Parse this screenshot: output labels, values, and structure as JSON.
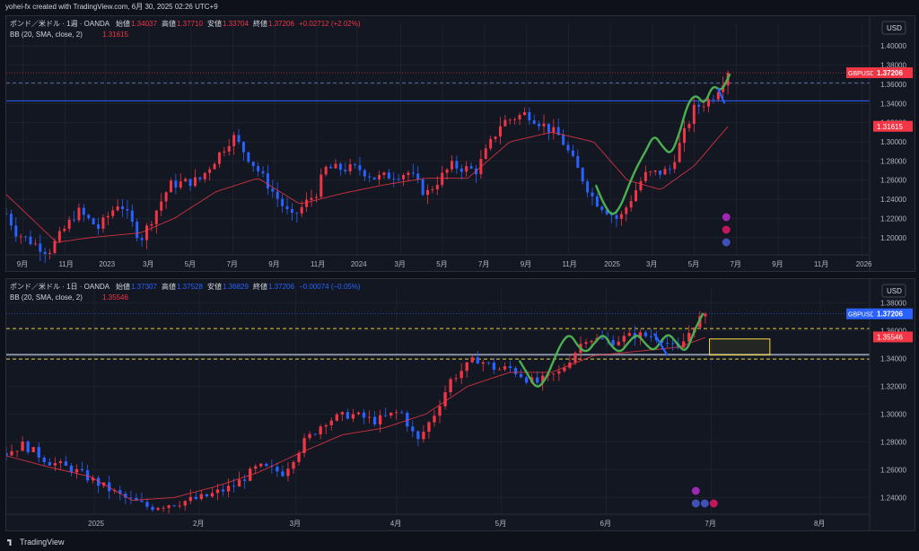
{
  "header": {
    "text": "yohei-fx created with TradingView.com, 6月 30, 2025 02:26 UTC+9"
  },
  "footer": {
    "brand": "TradingView"
  },
  "colors": {
    "up": "#f23645",
    "down": "#2962ff",
    "bb": "#f23645",
    "wave": "#4caf50",
    "hline": "#2962ff",
    "dash": "#e8cf3b",
    "box": "#f5d742"
  },
  "chart_data": [
    {
      "type": "candlestick",
      "title": "ポンド／米ドル · 1週 · OANDA",
      "ohlc_labels": [
        "始値",
        "高値",
        "安値",
        "終値"
      ],
      "ohlc_values": [
        "1.34037",
        "1.37710",
        "1.33704",
        "1.37206"
      ],
      "change": "+0.02712 (+2.02%)",
      "indicator_label": "BB (20, SMA, close, 2)",
      "indicator_value": "1.31615",
      "currency": "USD",
      "symbol": "GBPUSD",
      "last_price": "1.37206",
      "bb_price": "1.31615",
      "ylim": [
        1.182,
        1.418
      ],
      "y_ticks": [
        "1.40000",
        "1.38000",
        "1.36000",
        "1.34000",
        "1.32000",
        "1.30000",
        "1.28000",
        "1.26000",
        "1.24000",
        "1.22000",
        "1.20000"
      ],
      "x_ticks": [
        {
          "label": "9月",
          "t": 0.02
        },
        {
          "label": "11月",
          "t": 0.07
        },
        {
          "label": "2023",
          "t": 0.118
        },
        {
          "label": "3月",
          "t": 0.17
        },
        {
          "label": "5月",
          "t": 0.22
        },
        {
          "label": "7月",
          "t": 0.27
        },
        {
          "label": "9月",
          "t": 0.32
        },
        {
          "label": "11月",
          "t": 0.37
        },
        {
          "label": "2024",
          "t": 0.418
        },
        {
          "label": "3月",
          "t": 0.47
        },
        {
          "label": "5月",
          "t": 0.52
        },
        {
          "label": "7月",
          "t": 0.57
        },
        {
          "label": "9月",
          "t": 0.62
        },
        {
          "label": "11月",
          "t": 0.67
        },
        {
          "label": "2025",
          "t": 0.72
        },
        {
          "label": "3月",
          "t": 0.77
        },
        {
          "label": "5月",
          "t": 0.82
        },
        {
          "label": "7月",
          "t": 0.87
        },
        {
          "label": "9月",
          "t": 0.92
        },
        {
          "label": "11月",
          "t": 0.97
        },
        {
          "label": "2026",
          "t": 1.02
        }
      ],
      "h_lines": [
        1.3427
      ],
      "dashed_lines": [
        1.3615
      ],
      "anchors": [
        [
          0,
          1.225
        ],
        [
          0.012,
          1.205
        ],
        [
          0.05,
          1.185
        ],
        [
          0.085,
          1.228
        ],
        [
          0.11,
          1.21
        ],
        [
          0.135,
          1.238
        ],
        [
          0.16,
          1.198
        ],
        [
          0.195,
          1.255
        ],
        [
          0.23,
          1.26
        ],
        [
          0.27,
          1.306
        ],
        [
          0.3,
          1.27
        ],
        [
          0.34,
          1.22
        ],
        [
          0.37,
          1.248
        ],
        [
          0.38,
          1.272
        ],
        [
          0.42,
          1.272
        ],
        [
          0.44,
          1.262
        ],
        [
          0.48,
          1.268
        ],
        [
          0.5,
          1.245
        ],
        [
          0.53,
          1.275
        ],
        [
          0.56,
          1.27
        ],
        [
          0.59,
          1.32
        ],
        [
          0.62,
          1.33
        ],
        [
          0.66,
          1.305
        ],
        [
          0.7,
          1.24
        ],
        [
          0.73,
          1.218
        ],
        [
          0.76,
          1.265
        ],
        [
          0.79,
          1.27
        ],
        [
          0.82,
          1.335
        ],
        [
          0.84,
          1.345
        ],
        [
          0.86,
          1.372
        ]
      ],
      "bb_anchors": [
        [
          0,
          1.245
        ],
        [
          0.06,
          1.195
        ],
        [
          0.1,
          1.2
        ],
        [
          0.16,
          1.205
        ],
        [
          0.2,
          1.22
        ],
        [
          0.25,
          1.248
        ],
        [
          0.3,
          1.262
        ],
        [
          0.35,
          1.235
        ],
        [
          0.4,
          1.246
        ],
        [
          0.45,
          1.255
        ],
        [
          0.5,
          1.262
        ],
        [
          0.55,
          1.262
        ],
        [
          0.6,
          1.3
        ],
        [
          0.65,
          1.31
        ],
        [
          0.7,
          1.3
        ],
        [
          0.74,
          1.26
        ],
        [
          0.78,
          1.25
        ],
        [
          0.82,
          1.275
        ],
        [
          0.86,
          1.316
        ]
      ],
      "wave": [
        [
          0.703,
          1.254
        ],
        [
          0.712,
          1.235
        ],
        [
          0.722,
          1.222
        ],
        [
          0.732,
          1.232
        ],
        [
          0.742,
          1.255
        ],
        [
          0.752,
          1.275
        ],
        [
          0.762,
          1.29
        ],
        [
          0.772,
          1.308
        ],
        [
          0.782,
          1.295
        ],
        [
          0.792,
          1.286
        ],
        [
          0.802,
          1.308
        ],
        [
          0.812,
          1.34
        ],
        [
          0.822,
          1.35
        ],
        [
          0.832,
          1.338
        ],
        [
          0.842,
          1.36
        ],
        [
          0.852,
          1.352
        ],
        [
          0.862,
          1.37
        ]
      ],
      "blue_seg": [
        [
          0.848,
          1.356
        ],
        [
          0.856,
          1.34
        ]
      ]
    },
    {
      "type": "candlestick",
      "title": "ポンド／米ドル · 1日 · OANDA",
      "ohlc_labels": [
        "始値",
        "高値",
        "安値",
        "終値"
      ],
      "ohlc_values": [
        "1.37307",
        "1.37528",
        "1.36829",
        "1.37206"
      ],
      "change": "−0.00074 (−0.05%)",
      "indicator_label": "BB (20, SMA, close, 2)",
      "indicator_value": "1.35546",
      "currency": "USD",
      "symbol": "GBPUSD",
      "last_price": "1.37206",
      "bb_price": "1.35546",
      "ylim": [
        1.228,
        1.388
      ],
      "y_ticks": [
        "1.38000",
        "1.36000",
        "1.34000",
        "1.32000",
        "1.30000",
        "1.28000",
        "1.26000",
        "1.24000"
      ],
      "x_ticks": [
        {
          "label": "2025",
          "t": 0.105
        },
        {
          "label": "2月",
          "t": 0.23
        },
        {
          "label": "3月",
          "t": 0.345
        },
        {
          "label": "4月",
          "t": 0.465
        },
        {
          "label": "5月",
          "t": 0.59
        },
        {
          "label": "6月",
          "t": 0.715
        },
        {
          "label": "7月",
          "t": 0.84
        },
        {
          "label": "8月",
          "t": 0.97
        }
      ],
      "h_lines": [
        1.3427
      ],
      "dashed_lines": [
        1.3615,
        1.3395
      ],
      "target_box": {
        "t0": 0.838,
        "t1": 0.91,
        "p0": 1.354,
        "p1": 1.3425
      },
      "anchors": [
        [
          0,
          1.272
        ],
        [
          0.02,
          1.278
        ],
        [
          0.05,
          1.266
        ],
        [
          0.08,
          1.26
        ],
        [
          0.11,
          1.25
        ],
        [
          0.14,
          1.24
        ],
        [
          0.17,
          1.233
        ],
        [
          0.2,
          1.236
        ],
        [
          0.235,
          1.24
        ],
        [
          0.27,
          1.248
        ],
        [
          0.3,
          1.262
        ],
        [
          0.33,
          1.258
        ],
        [
          0.355,
          1.28
        ],
        [
          0.38,
          1.295
        ],
        [
          0.41,
          1.3
        ],
        [
          0.44,
          1.295
        ],
        [
          0.47,
          1.302
        ],
        [
          0.49,
          1.28
        ],
        [
          0.51,
          1.3
        ],
        [
          0.53,
          1.325
        ],
        [
          0.56,
          1.34
        ],
        [
          0.585,
          1.332
        ],
        [
          0.6,
          1.333
        ],
        [
          0.63,
          1.322
        ],
        [
          0.66,
          1.33
        ],
        [
          0.69,
          1.355
        ],
        [
          0.72,
          1.352
        ],
        [
          0.75,
          1.357
        ],
        [
          0.78,
          1.355
        ],
        [
          0.8,
          1.345
        ],
        [
          0.82,
          1.365
        ],
        [
          0.833,
          1.372
        ]
      ],
      "bb_anchors": [
        [
          0,
          1.27
        ],
        [
          0.05,
          1.262
        ],
        [
          0.1,
          1.255
        ],
        [
          0.15,
          1.238
        ],
        [
          0.2,
          1.24
        ],
        [
          0.25,
          1.248
        ],
        [
          0.3,
          1.258
        ],
        [
          0.35,
          1.272
        ],
        [
          0.4,
          1.285
        ],
        [
          0.45,
          1.29
        ],
        [
          0.5,
          1.3
        ],
        [
          0.55,
          1.32
        ],
        [
          0.6,
          1.33
        ],
        [
          0.65,
          1.33
        ],
        [
          0.7,
          1.342
        ],
        [
          0.75,
          1.345
        ],
        [
          0.8,
          1.348
        ],
        [
          0.833,
          1.355
        ]
      ],
      "wave": [
        [
          0.612,
          1.338
        ],
        [
          0.622,
          1.328
        ],
        [
          0.632,
          1.318
        ],
        [
          0.642,
          1.324
        ],
        [
          0.652,
          1.338
        ],
        [
          0.662,
          1.352
        ],
        [
          0.672,
          1.358
        ],
        [
          0.682,
          1.348
        ],
        [
          0.692,
          1.344
        ],
        [
          0.702,
          1.352
        ],
        [
          0.712,
          1.358
        ],
        [
          0.722,
          1.348
        ],
        [
          0.732,
          1.344
        ],
        [
          0.742,
          1.352
        ],
        [
          0.752,
          1.358
        ],
        [
          0.762,
          1.35
        ],
        [
          0.772,
          1.345
        ],
        [
          0.782,
          1.354
        ],
        [
          0.79,
          1.358
        ],
        [
          0.8,
          1.35
        ],
        [
          0.81,
          1.344
        ],
        [
          0.82,
          1.36
        ],
        [
          0.83,
          1.372
        ]
      ],
      "blue_seg": [
        [
          0.772,
          1.358
        ],
        [
          0.788,
          1.342
        ]
      ]
    }
  ]
}
